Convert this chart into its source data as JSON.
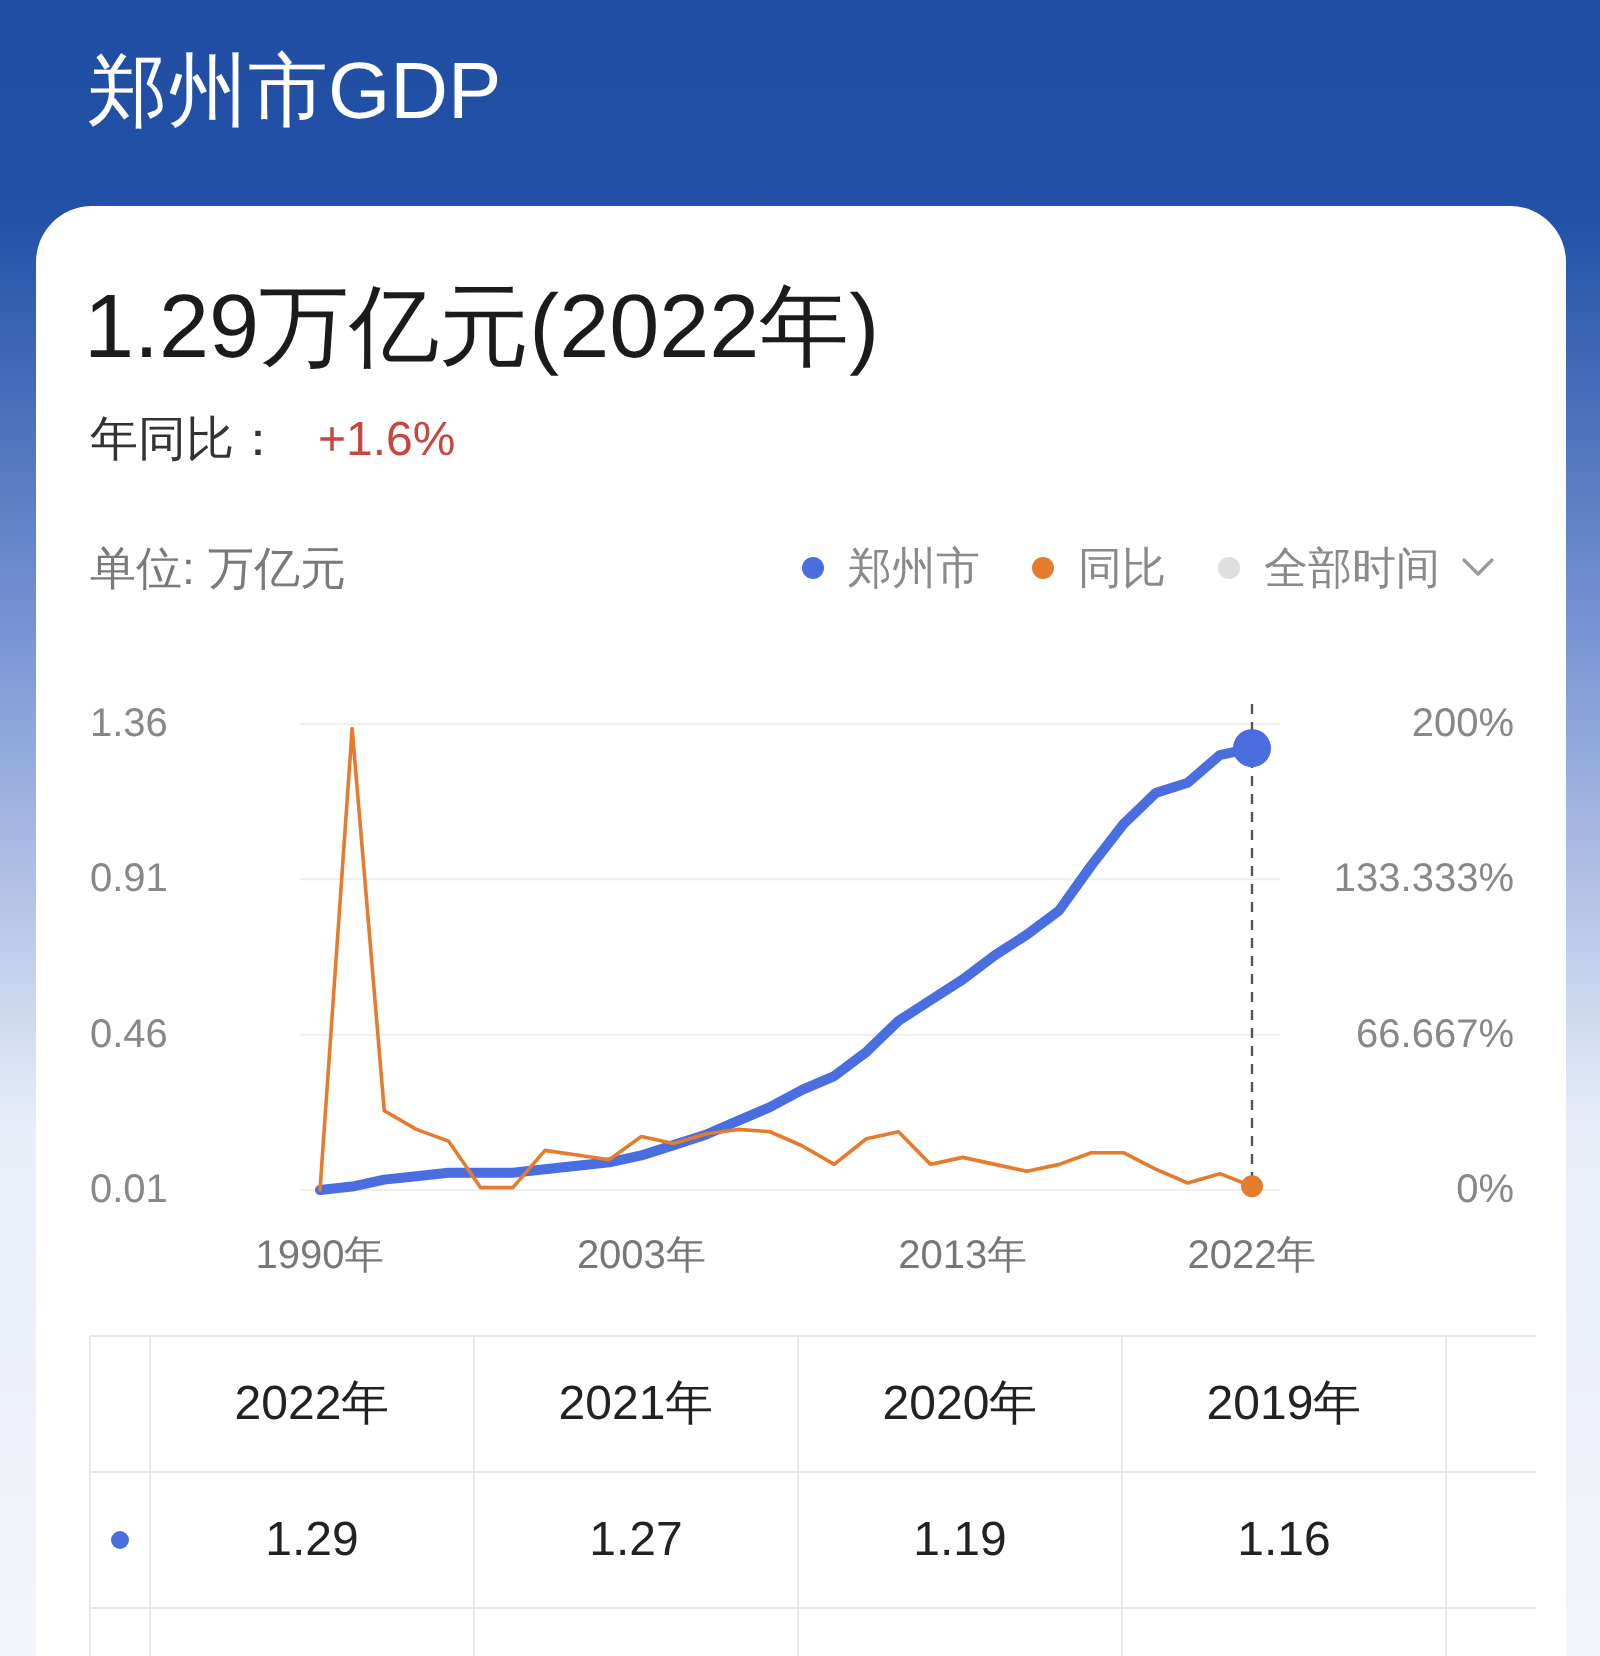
{
  "chart_data": [
    {
      "type": "line",
      "title": "郑州市GDP",
      "subtitle": "1.29万亿元(2022年)",
      "ylabel": "单位: 万亿元",
      "annotations": [
        "年同比：",
        "+1.6%",
        "全部时间"
      ],
      "categories": [
        "1990年",
        null,
        null,
        null,
        null,
        null,
        null,
        null,
        null,
        null,
        "2003年",
        null,
        null,
        null,
        null,
        null,
        null,
        null,
        null,
        null,
        "2013年",
        null,
        null,
        null,
        null,
        null,
        null,
        null,
        null,
        "2022年"
      ],
      "series": [
        {
          "name": "郑州市",
          "color": "#4a6ee0",
          "values": [
            0.01,
            0.02,
            0.04,
            0.05,
            0.06,
            0.06,
            0.06,
            0.07,
            0.08,
            0.09,
            0.11,
            0.14,
            0.17,
            0.21,
            0.25,
            0.3,
            0.34,
            0.41,
            0.5,
            0.56,
            0.62,
            0.69,
            0.75,
            0.82,
            0.95,
            1.07,
            1.16,
            1.19,
            1.27,
            1.29
          ]
        },
        {
          "name": "同比",
          "color": "#e57b2c",
          "axis": "y2",
          "values": [
            0,
            198,
            34,
            26,
            21,
            1,
            1,
            17,
            15,
            13,
            23,
            20,
            24,
            26,
            25,
            19,
            11,
            22,
            25,
            11,
            14,
            11,
            8,
            11,
            16,
            16,
            9,
            3,
            7,
            1.6
          ]
        }
      ],
      "ylim": [
        0.01,
        1.36
      ],
      "yticks": [
        0.01,
        0.46,
        0.91,
        1.36
      ],
      "y2lim": [
        0,
        200
      ],
      "y2ticks": [
        {
          "value": 0,
          "label": "0%"
        },
        {
          "value": 66.667,
          "label": "66.667%"
        },
        {
          "value": 133.333,
          "label": "133.333%"
        },
        {
          "value": 200,
          "label": "200%"
        }
      ],
      "grid": "y",
      "legend": "top right",
      "ref_lines": [
        {
          "axis": "x",
          "value": "2022年",
          "color": "#555555",
          "line_style": "dashed"
        }
      ]
    },
    {
      "type": "heatmap",
      "categories": [
        "2022年",
        "2021年",
        "2020年",
        "2019年"
      ],
      "y_categories": [
        null
      ],
      "cells": [
        [
          1.29,
          1.27,
          1.19,
          1.16
        ]
      ],
      "data_labels": true
    }
  ]
}
